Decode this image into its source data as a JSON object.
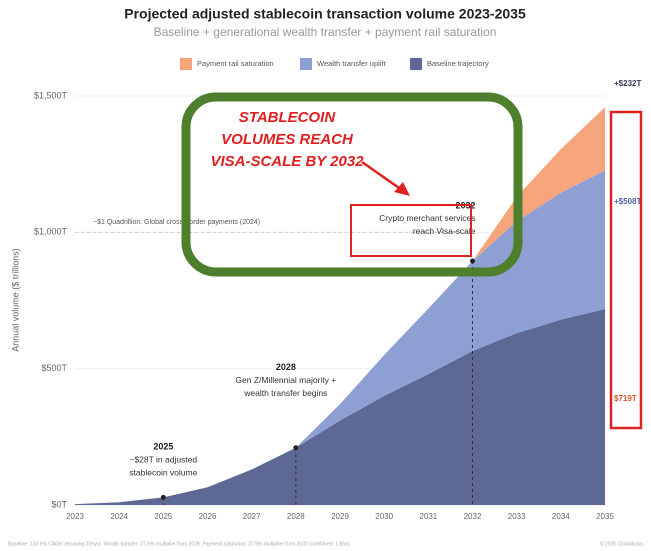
{
  "chart_data": {
    "type": "stacked-area",
    "title": "Projected adjusted stablecoin transaction volume 2023-2035",
    "subtitle": "Baseline + generational wealth transfer + payment rail saturation",
    "y_label": "Annual volume ($ trillions)",
    "categories": [
      "2023",
      "2024",
      "2025",
      "2026",
      "2027",
      "2028",
      "2029",
      "2030",
      "2031",
      "2032",
      "2033",
      "2034",
      "2035"
    ],
    "ylim": [
      0,
      1500
    ],
    "yticks": [
      {
        "value": 0,
        "label": "$0T"
      },
      {
        "value": 500,
        "label": "$500T"
      },
      {
        "value": 1000,
        "label": "$1,000T"
      },
      {
        "value": 1500,
        "label": "$1,500T"
      }
    ],
    "legend": "top",
    "series": [
      {
        "name": "Baseline trajectory",
        "color": "#5d6894",
        "values": [
          3,
          10,
          28,
          65,
          130,
          210,
          310,
          400,
          480,
          565,
          630,
          680,
          719
        ],
        "value_labels": [
          null,
          null,
          null,
          null,
          null,
          null,
          null,
          null,
          null,
          null,
          null,
          null,
          "$719T"
        ]
      },
      {
        "name": "Wealth transfer uplift",
        "color": "#8e9fd4",
        "values": [
          0,
          0,
          0,
          0,
          0,
          0,
          60,
          150,
          240,
          330,
          410,
          465,
          508
        ],
        "value_labels": [
          null,
          null,
          null,
          null,
          null,
          null,
          null,
          null,
          null,
          null,
          null,
          null,
          "+$508T"
        ]
      },
      {
        "name": "Payment rail saturation",
        "color": "#f5a47c",
        "values": [
          0,
          0,
          0,
          0,
          0,
          0,
          0,
          0,
          0,
          0,
          90,
          160,
          232
        ],
        "value_labels": [
          null,
          null,
          null,
          null,
          null,
          null,
          null,
          null,
          null,
          null,
          null,
          null,
          "+$232T"
        ]
      }
    ],
    "reference_line": {
      "value": 1000,
      "label": "~$1 Quadrillion: Global cross-border payments (2024)"
    },
    "annotations": [
      {
        "year": "2025",
        "lines": [
          "~$28T in adjusted",
          "stablecoin volume"
        ]
      },
      {
        "year": "2028",
        "lines": [
          "Gen Z/Millennial majority +",
          "wealth transfer begins"
        ]
      },
      {
        "year": "2032",
        "lines": [
          "Crypto merchant services",
          "reach Visa-scale"
        ]
      }
    ],
    "overlay": [
      "STABLECOIN",
      "VOLUMES REACH",
      "VISA-SCALE BY 2032"
    ],
    "footnote": "Baseline: 133.5% CAGR decaying 30%/yr. Wealth transfer: 37.5% multiplier from 2028. Payment saturation: 37.5% multiplier from 2032 (combined: 1.85x).",
    "source": "© 2026 Chainalysis"
  }
}
